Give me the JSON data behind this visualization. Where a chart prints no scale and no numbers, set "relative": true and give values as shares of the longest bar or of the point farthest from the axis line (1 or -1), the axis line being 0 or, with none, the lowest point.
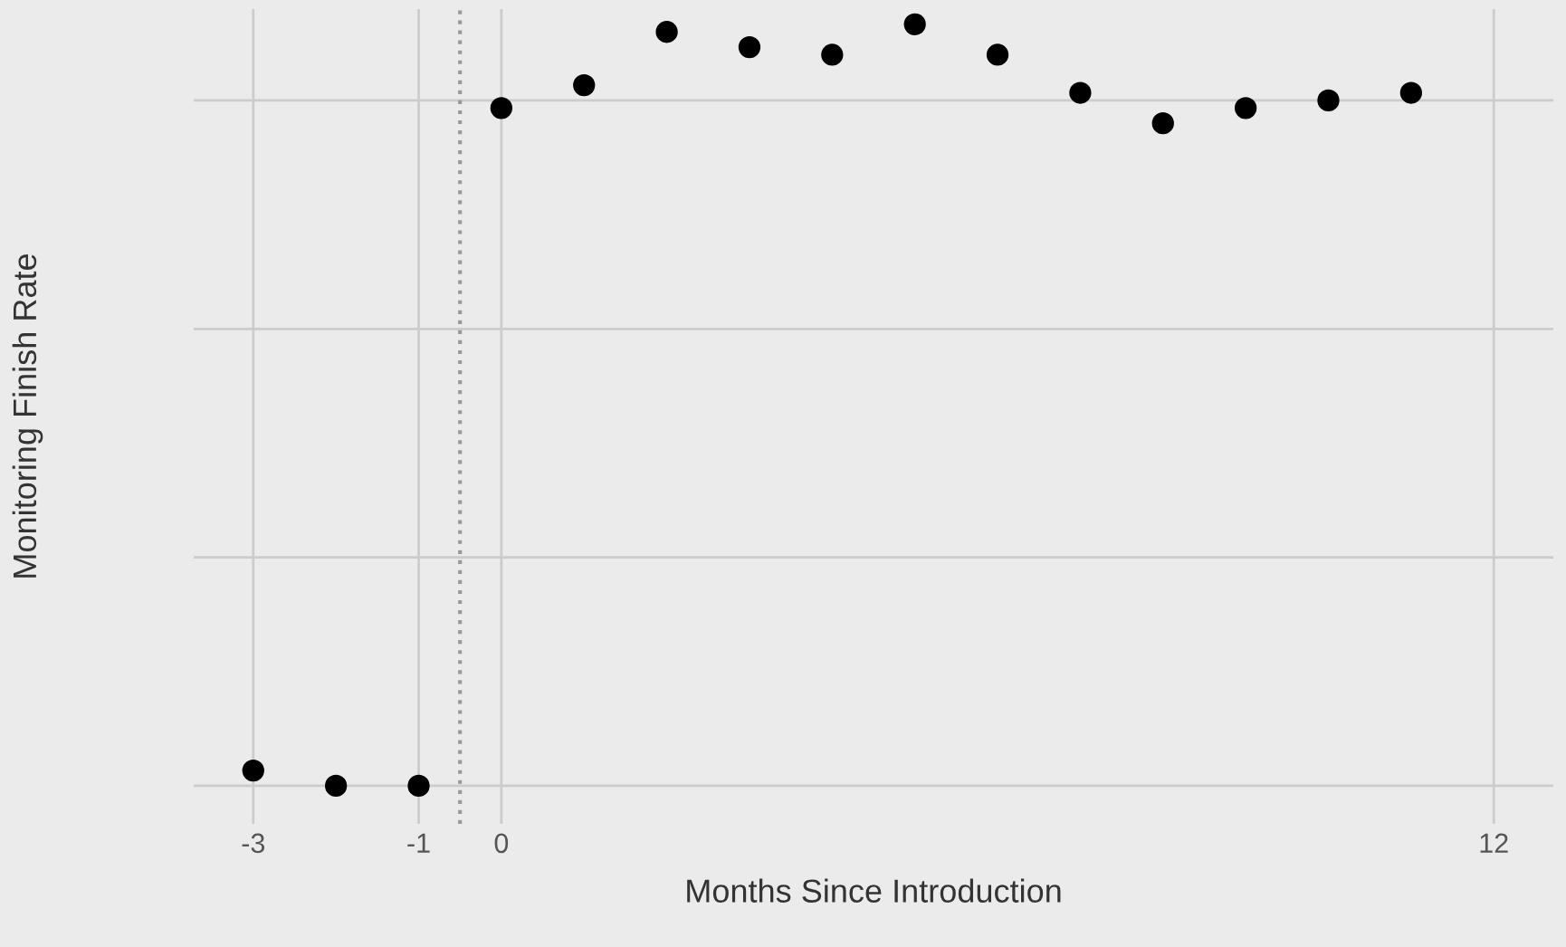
{
  "chart_data": {
    "type": "scatter",
    "xlabel": "Months Since Introduction",
    "ylabel": "Monitoring Finish Rate",
    "x": [
      -3,
      -2,
      -1,
      0,
      1,
      2,
      3,
      4,
      5,
      6,
      7,
      8,
      9,
      10,
      11
    ],
    "series": [
      {
        "color": "#000000",
        "values": [
          0.02,
          0,
          0,
          0.89,
          0.92,
          0.99,
          0.97,
          0.96,
          1,
          0.96,
          0.91,
          0.87,
          0.89,
          0.9,
          0.91
        ]
      }
    ],
    "relative": true,
    "xlim": [
      -3.72,
      12.72
    ],
    "xticks": [
      -3,
      -1,
      0,
      12
    ],
    "ref_lines": [
      {
        "axis": "x",
        "value": -0.5,
        "color": "#999999",
        "line_style": "dotted"
      }
    ],
    "grid": true,
    "marker": "circle",
    "tick_labels": "x"
  }
}
